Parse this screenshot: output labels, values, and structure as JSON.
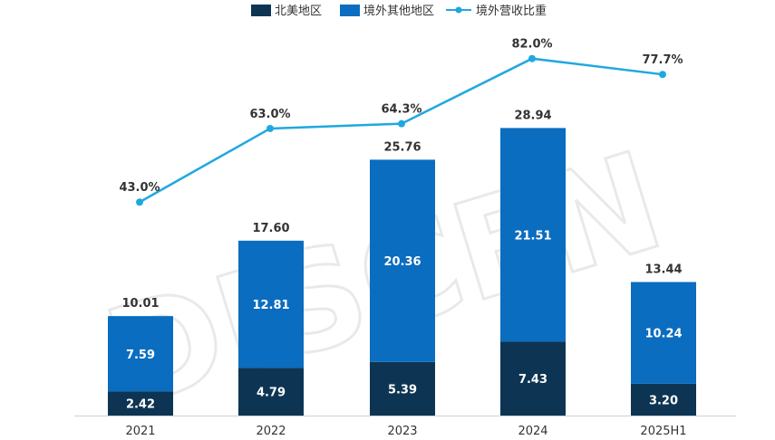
{
  "chart_data": {
    "type": "bar",
    "stacked": true,
    "categories": [
      "2021",
      "2022",
      "2023",
      "2024",
      "2025H1"
    ],
    "series": [
      {
        "name": "北美地区",
        "values": [
          2.42,
          4.79,
          5.39,
          7.43,
          3.2
        ],
        "color": "#0d3553"
      },
      {
        "name": "境外其他地区",
        "values": [
          7.59,
          12.81,
          20.36,
          21.51,
          10.24
        ],
        "color": "#0b6dbf"
      }
    ],
    "totals": [
      10.01,
      17.6,
      25.76,
      28.94,
      13.44
    ],
    "line_series": {
      "name": "境外营收比重",
      "values": [
        43.0,
        63.0,
        64.3,
        82.0,
        77.7
      ],
      "unit": "%",
      "color": "#1fa8e0"
    },
    "legend_position": "top",
    "grid": false,
    "bar_ylim": [
      0,
      40
    ],
    "line_ylim": [
      -15,
      93
    ],
    "watermark": "DISCEN"
  }
}
